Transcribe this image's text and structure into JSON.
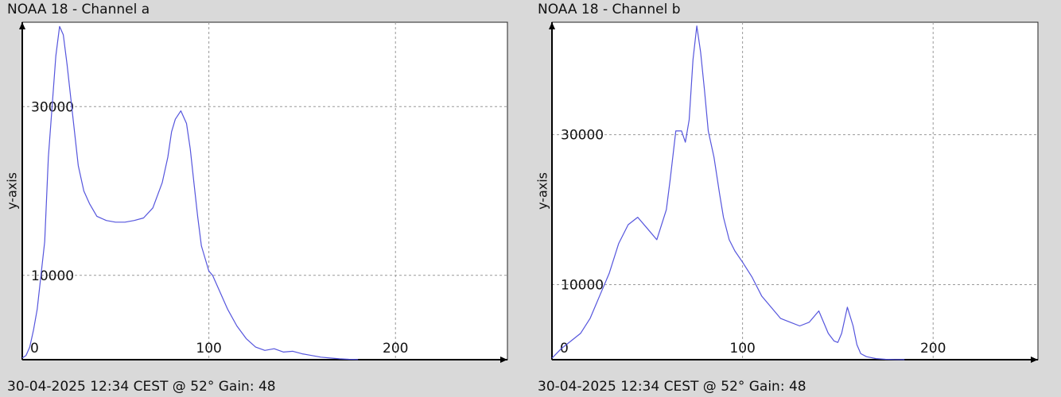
{
  "charts": [
    {
      "title": "NOAA 18 - Channel a",
      "footer": "30-04-2025 12:34 CEST @ 52° Gain: 48"
    },
    {
      "title": "NOAA 18 - Channel b",
      "footer": "30-04-2025 12:34 CEST @ 52° Gain: 48"
    }
  ],
  "colors": {
    "line": "#5555dd",
    "grid": "#999999",
    "axis": "#000000",
    "plot_bg": "#ffffff"
  },
  "chart_data": [
    {
      "type": "line",
      "title": "NOAA 18 - Channel a",
      "xlabel": "",
      "ylabel": "y-axis",
      "xlim": [
        0,
        260
      ],
      "ylim": [
        0,
        40000
      ],
      "x_ticks": [
        0,
        100,
        200
      ],
      "x_tick_labels": [
        "0",
        "100",
        "200"
      ],
      "y_ticks": [
        10000,
        30000
      ],
      "y_tick_labels": [
        "10000",
        "30000"
      ],
      "grid": true,
      "x": [
        0,
        2,
        4,
        6,
        8,
        10,
        12,
        14,
        16,
        18,
        20,
        22,
        24,
        26,
        28,
        30,
        33,
        36,
        40,
        45,
        50,
        55,
        60,
        65,
        70,
        75,
        78,
        80,
        82,
        85,
        88,
        90,
        92,
        94,
        96,
        98,
        100,
        102,
        104,
        106,
        110,
        115,
        120,
        125,
        130,
        135,
        140,
        145,
        150,
        155,
        160,
        165,
        170,
        175,
        180
      ],
      "y": [
        200,
        500,
        1500,
        3500,
        6000,
        10000,
        14000,
        24000,
        30000,
        36000,
        39500,
        38500,
        35000,
        31000,
        27000,
        23000,
        20000,
        18500,
        17000,
        16500,
        16300,
        16300,
        16500,
        16800,
        18000,
        21000,
        24000,
        27000,
        28500,
        29500,
        28000,
        25000,
        21000,
        17000,
        13500,
        12000,
        10500,
        10000,
        9000,
        8000,
        6000,
        4000,
        2500,
        1500,
        1100,
        1300,
        900,
        1000,
        700,
        500,
        300,
        200,
        100,
        50,
        30
      ],
      "series": [
        {
          "name": "",
          "color": "#5555dd"
        }
      ]
    },
    {
      "type": "line",
      "title": "NOAA 18 - Channel b",
      "xlabel": "",
      "ylabel": "y-axis",
      "xlim": [
        0,
        255
      ],
      "ylim": [
        0,
        45000
      ],
      "x_ticks": [
        0,
        100,
        200
      ],
      "x_tick_labels": [
        "0",
        "100",
        "200"
      ],
      "y_ticks": [
        10000,
        30000
      ],
      "y_tick_labels": [
        "10000",
        "30000"
      ],
      "grid": true,
      "x": [
        0,
        5,
        10,
        15,
        20,
        25,
        30,
        35,
        40,
        45,
        50,
        55,
        60,
        62,
        65,
        68,
        70,
        72,
        74,
        76,
        78,
        80,
        82,
        85,
        88,
        90,
        93,
        96,
        100,
        105,
        110,
        115,
        120,
        125,
        130,
        135,
        140,
        145,
        148,
        150,
        152,
        155,
        158,
        160,
        162,
        165,
        170,
        175,
        180,
        185
      ],
      "y": [
        200,
        1500,
        2500,
        3500,
        5500,
        8500,
        11500,
        15500,
        18000,
        19000,
        17500,
        16000,
        20000,
        24000,
        30500,
        30500,
        29000,
        32000,
        40000,
        44500,
        41000,
        36000,
        30500,
        27000,
        22000,
        19000,
        16000,
        14500,
        13000,
        11000,
        8500,
        7000,
        5500,
        5000,
        4500,
        5000,
        6500,
        3500,
        2500,
        2300,
        3500,
        7000,
        4500,
        2000,
        800,
        400,
        150,
        50,
        20,
        10
      ],
      "series": [
        {
          "name": "",
          "color": "#5555dd"
        }
      ]
    }
  ]
}
